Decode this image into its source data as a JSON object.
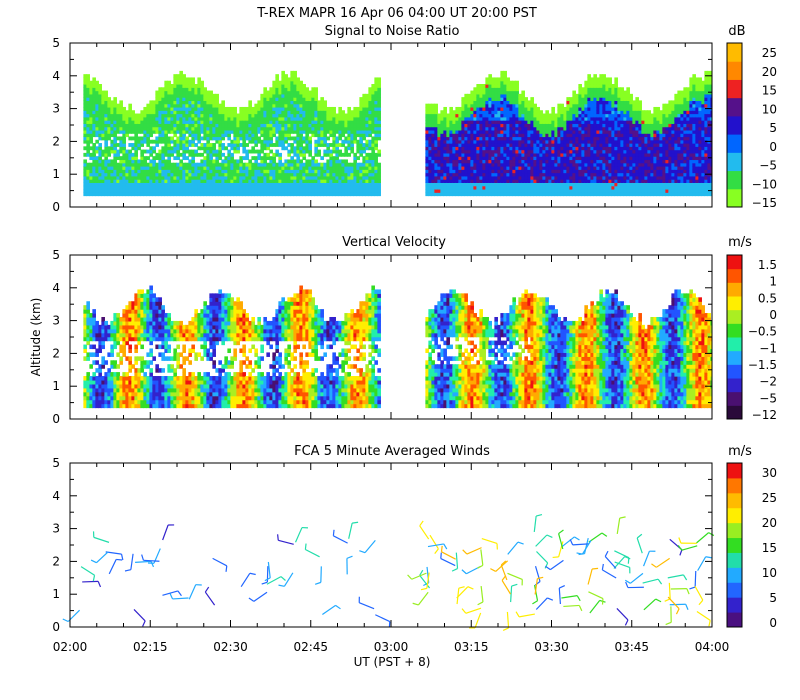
{
  "header": {
    "title": "T-REX   MAPR 16 Apr 06   04:00 UT   20:00   PST"
  },
  "shared": {
    "y_axis_label": "Altitude (km)",
    "x_axis_label": "UT  (PST + 8)",
    "x_ticks": [
      "02:00",
      "02:15",
      "02:30",
      "02:45",
      "03:00",
      "03:15",
      "03:30",
      "03:45",
      "04:00"
    ],
    "y_ticks": [
      "0",
      "1",
      "2",
      "3",
      "4",
      "5"
    ],
    "data_gap_ut": [
      "02:58",
      "03:06"
    ]
  },
  "colors": {
    "snr": [
      "#88ff22",
      "#33dd44",
      "#22bbee",
      "#0066ff",
      "#2211cc",
      "#55118a",
      "#ee2222",
      "#ff8800",
      "#ffbb00"
    ],
    "vv": [
      "#2a0a3a",
      "#4a1070",
      "#3322cc",
      "#2255ff",
      "#22aaff",
      "#22eeaa",
      "#33dd22",
      "#aaee22",
      "#ffee00",
      "#ffaa00",
      "#ff5500",
      "#ee1111"
    ],
    "winds": [
      "#4a1080",
      "#3322cc",
      "#2266ff",
      "#22aaff",
      "#22ddaa",
      "#33dd22",
      "#99ee22",
      "#ffee00",
      "#ffbb00",
      "#ff7700",
      "#ee1111"
    ]
  },
  "chart_data": [
    {
      "type": "heatmap",
      "title": "Signal to Noise Ratio",
      "units": "dB",
      "xlabel": "",
      "ylabel": "",
      "x_range_ut": [
        "02:00",
        "04:00"
      ],
      "ylim": [
        0,
        5
      ],
      "colorbar_ticks": [
        "25",
        "20",
        "15",
        "10",
        "5",
        "0",
        "−5",
        "−10",
        "−15"
      ],
      "colorbar_values": [
        25,
        20,
        15,
        10,
        5,
        0,
        -5,
        -10,
        -15
      ],
      "data_altitude_range_km": [
        0.35,
        4.1
      ]
    },
    {
      "type": "heatmap",
      "title": "Vertical Velocity",
      "units": "m/s",
      "xlabel": "",
      "ylabel": "Altitude (km)",
      "x_range_ut": [
        "02:00",
        "04:00"
      ],
      "ylim": [
        0,
        5
      ],
      "colorbar_ticks": [
        "1.5",
        "1",
        "0.5",
        "0",
        "−0.5",
        "−1",
        "−1.5",
        "−2",
        "−5",
        "−12"
      ],
      "colorbar_values": [
        1.5,
        1,
        0.5,
        0,
        -0.5,
        -1,
        -1.5,
        -2,
        -5,
        -12
      ],
      "data_altitude_range_km": [
        0.35,
        4.0
      ]
    },
    {
      "type": "scatter",
      "title": "FCA 5 Minute Averaged Winds",
      "units": "m/s",
      "xlabel": "UT  (PST + 8)",
      "ylabel": "",
      "x_range_ut": [
        "02:00",
        "04:00"
      ],
      "ylim": [
        0,
        5
      ],
      "colorbar_ticks": [
        "30",
        "25",
        "20",
        "15",
        "10",
        "5",
        "0"
      ],
      "colorbar_values": [
        30,
        25,
        20,
        15,
        10,
        5,
        0
      ],
      "marker": "wind barb"
    }
  ]
}
